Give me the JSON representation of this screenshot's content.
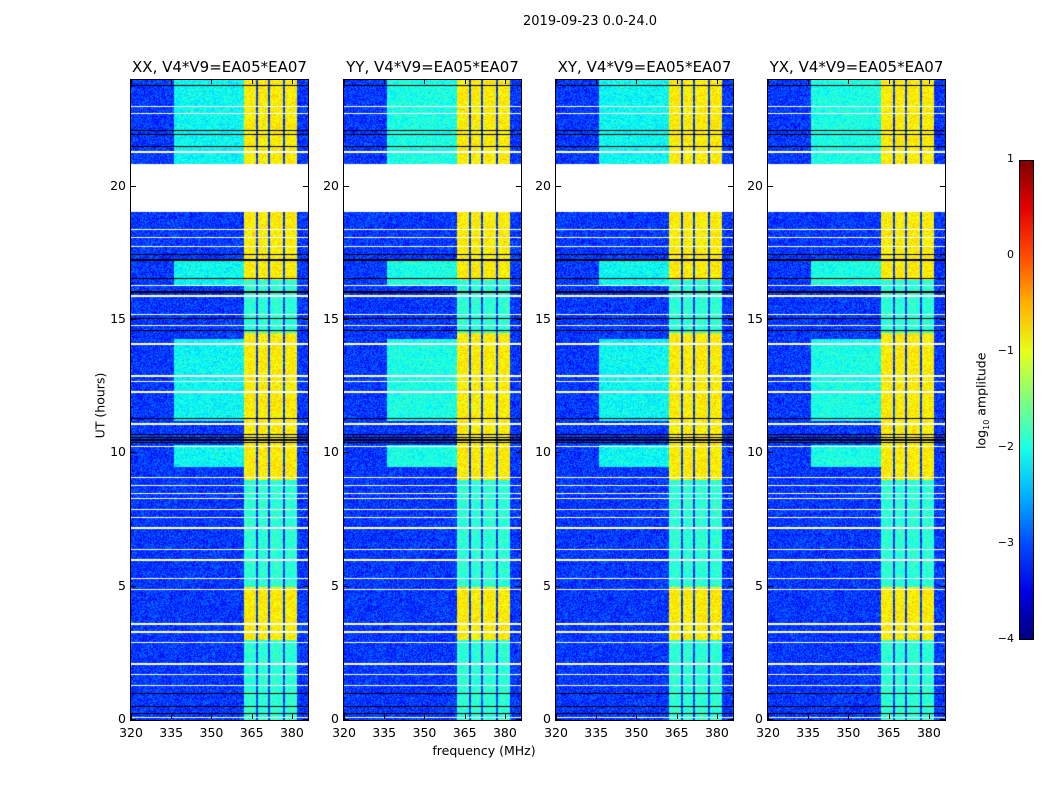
{
  "chart_data": {
    "type": "heatmap",
    "title": "2019-09-23 0.0-24.0",
    "xlabel": "frequency (MHz)",
    "ylabel": "UT (hours)",
    "xlim": [
      320,
      386
    ],
    "ylim": [
      0,
      24
    ],
    "xticks": [
      "320",
      "335",
      "350",
      "365",
      "380"
    ],
    "xtick_values": [
      320,
      335,
      350,
      365,
      380
    ],
    "yticks": [
      "0",
      "5",
      "10",
      "15",
      "20"
    ],
    "ytick_values": [
      0,
      5,
      10,
      15,
      20
    ],
    "colormap": "jet",
    "colorbar": {
      "label": "log10 amplitude",
      "label_main": "log",
      "label_sub": "10",
      "label_rest": " amplitude",
      "range": [
        -4,
        1
      ],
      "ticks": [
        "1",
        "0",
        "−1",
        "−2",
        "−3",
        "−4"
      ],
      "tick_values": [
        1,
        0,
        -1,
        -2,
        -3,
        -4
      ]
    },
    "panels": [
      {
        "title": "XX, V4*V9=EA05*EA07",
        "broadband_level": -2.1
      },
      {
        "title": "YY, V4*V9=EA05*EA07",
        "broadband_level": -2.0
      },
      {
        "title": "XY, V4*V9=EA05*EA07",
        "broadband_level": -2.1
      },
      {
        "title": "YX, V4*V9=EA05*EA07",
        "broadband_level": -2.0
      }
    ],
    "background_level": -3.1,
    "rfi_bands_mhz": [
      [
        362,
        366.5
      ],
      [
        367.5,
        371
      ],
      [
        372,
        376.5
      ],
      [
        377.5,
        382
      ]
    ],
    "rfi_strong_hours": [
      [
        3.0,
        5.0
      ],
      [
        9.0,
        14.5
      ],
      [
        16.5,
        19.1
      ],
      [
        20.8,
        24
      ]
    ],
    "rfi_strong_level": -0.8,
    "rfi_weak_level": -1.9,
    "broadband_hours": [
      [
        9.5,
        10.3
      ],
      [
        11.2,
        14.3
      ],
      [
        16.3,
        17.3
      ],
      [
        20.8,
        24
      ]
    ],
    "broadband_mhz": [
      336,
      362
    ],
    "flagged_gaps_hours": [
      [
        19.06,
        20.86
      ]
    ],
    "flagged_lines_hours": [
      23.0,
      22.75,
      21.3,
      18.4,
      18.1,
      17.75,
      16.3,
      15.9,
      15.2,
      14.8,
      14.1,
      12.9,
      12.7,
      12.3,
      11.1,
      10.25,
      9.1,
      8.8,
      8.5,
      8.3,
      7.9,
      7.6,
      7.2,
      6.4,
      6.0,
      5.3,
      4.9,
      3.6,
      3.3,
      2.9,
      2.1,
      1.7,
      1.3,
      0.1
    ],
    "zero_lines_hours": [
      23.8,
      22.1,
      21.95,
      21.5,
      17.45,
      17.25,
      16.55,
      16.05,
      15.05,
      14.6,
      11.3,
      10.7,
      10.6,
      10.5,
      10.4,
      1.0,
      0.5,
      0.25
    ]
  }
}
